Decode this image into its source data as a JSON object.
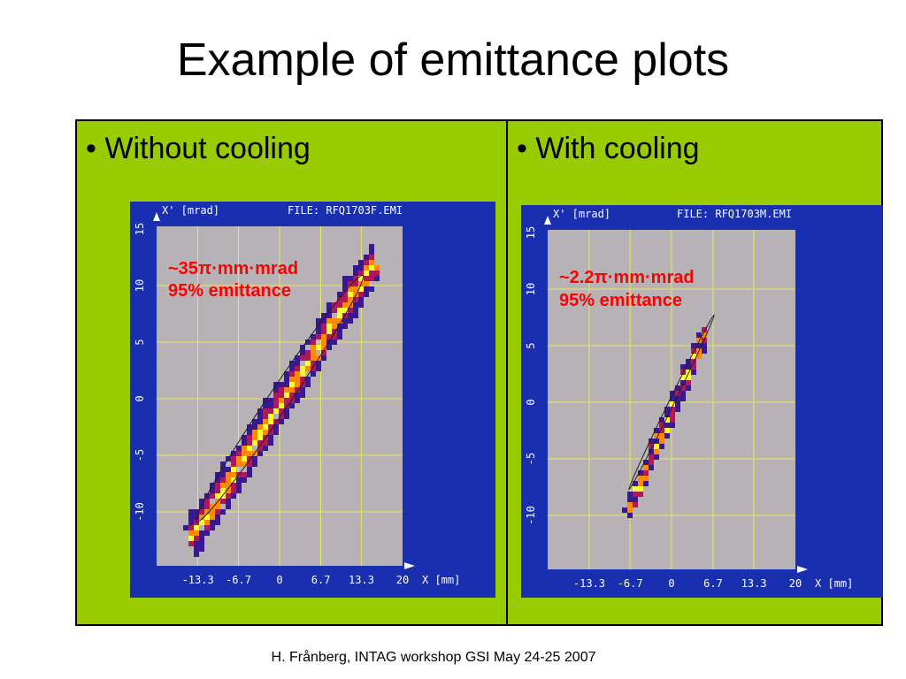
{
  "slide": {
    "title": "Example of emittance plots",
    "footer": "H. Frånberg, INTAG workshop GSI May 24-25 2007"
  },
  "columns": [
    {
      "bullet": "• Without cooling",
      "plot": {
        "y_axis_label": "X' [mrad]",
        "file_label": "FILE: RFQ1703F.EMI",
        "x_axis_label": "X [mm]",
        "x_ticks": [
          "-13.3",
          "-6.7",
          "0",
          "6.7",
          "13.3",
          "20"
        ],
        "y_ticks": [
          "15",
          "10",
          "5",
          "0",
          "-5",
          "-10"
        ],
        "annotation_value": "~35π·mm·mrad",
        "annotation_label": "95% emittance"
      }
    },
    {
      "bullet": "• With cooling",
      "plot": {
        "y_axis_label": "X' [mrad]",
        "file_label": "FILE: RFQ1703M.EMI",
        "x_axis_label": "X [mm]",
        "x_ticks": [
          "-13.3",
          "-6.7",
          "0",
          "6.7",
          "13.3",
          "20"
        ],
        "y_ticks": [
          "15",
          "10",
          "5",
          "0",
          "-5",
          "-10"
        ],
        "annotation_value": "~2.2π·mm·mrad",
        "annotation_label": "95% emittance"
      }
    }
  ],
  "colors": {
    "table_background": "#99cc00",
    "panel_background": "#1a2fb0",
    "plot_background": "#b7b2b6",
    "grid": "#e8e85a",
    "annotation": "#ff0000",
    "density_low": "#3a1890",
    "density_mid": "#b0185a",
    "density_high": "#ff8a00",
    "density_peak": "#ffff30"
  }
}
